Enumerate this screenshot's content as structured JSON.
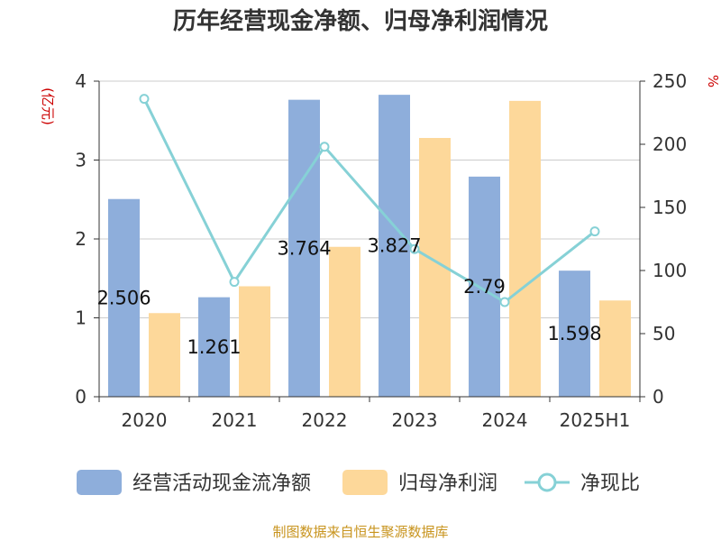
{
  "chart_data": {
    "type": "bar",
    "title": "历年经营现金净额、归母净利润情况",
    "categories": [
      "2020",
      "2021",
      "2022",
      "2023",
      "2024",
      "2025H1"
    ],
    "series": [
      {
        "name": "经营活动现金流净额",
        "type": "bar",
        "axis": "left",
        "color": "#8eaedb",
        "values": [
          2.506,
          1.261,
          3.764,
          3.827,
          2.79,
          1.598
        ],
        "labels": [
          "2.506",
          "1.261",
          "3.764",
          "3.827",
          "2.79",
          "1.598"
        ]
      },
      {
        "name": "归母净利润",
        "type": "bar",
        "axis": "left",
        "color": "#fdd89a",
        "values": [
          1.06,
          1.4,
          1.9,
          3.28,
          3.75,
          1.22
        ]
      },
      {
        "name": "净现比",
        "type": "line",
        "axis": "right",
        "color": "#86d1d6",
        "values": [
          236,
          91,
          198,
          117,
          75,
          131
        ]
      }
    ],
    "y_left": {
      "label": "(亿元)",
      "min": 0,
      "max": 4,
      "ticks": [
        "0",
        "1",
        "2",
        "3",
        "4"
      ],
      "label_color": "#cc0000"
    },
    "y_right": {
      "label": "%",
      "min": 0,
      "max": 250,
      "ticks": [
        "0",
        "50",
        "100",
        "150",
        "200",
        "250"
      ],
      "label_color": "#cc0000"
    },
    "grid": true,
    "legend_position": "bottom",
    "source": "制图数据来自恒生聚源数据库",
    "source_color": "#c8941e"
  }
}
